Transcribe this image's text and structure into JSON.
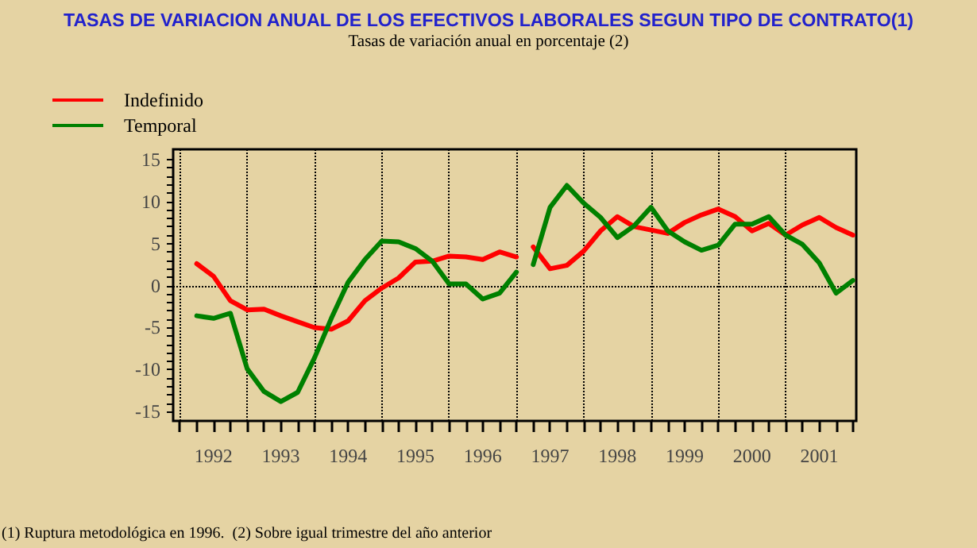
{
  "chart_data": {
    "type": "line",
    "title": "TASAS DE VARIACION ANUAL DE LOS EFECTIVOS LABORALES SEGUN TIPO DE CONTRATO(1)",
    "subtitle": "Tasas de variación anual en porcentaje (2)",
    "annotations": [
      "(1) Ruptura metodológica en 1996.  (2) Sobre igual trimestre del año anterior"
    ],
    "x": [
      1992.25,
      1992.5,
      1992.75,
      1993,
      1993.25,
      1993.5,
      1993.75,
      1994,
      1994.25,
      1994.5,
      1994.75,
      1995,
      1995.25,
      1995.5,
      1995.75,
      1996,
      1996.25,
      1996.5,
      1996.75,
      1997,
      1997.125,
      1997.25,
      1997.5,
      1997.75,
      1998,
      1998.25,
      1998.5,
      1998.75,
      1999,
      1999.25,
      1999.5,
      1999.75,
      2000,
      2000.25,
      2000.5,
      2000.75,
      2001,
      2001.25,
      2001.5,
      2001.75,
      2002
    ],
    "series": [
      {
        "name": "Indefinido",
        "color": "#ff0000",
        "values": [
          2.6,
          1.1,
          -1.8,
          -2.9,
          -2.8,
          -3.6,
          -4.3,
          -5.0,
          -5.2,
          -4.2,
          -1.8,
          -0.3,
          0.9,
          2.8,
          2.9,
          3.5,
          3.4,
          3.1,
          4.0,
          3.4,
          null,
          4.6,
          2.0,
          2.4,
          4.1,
          6.5,
          8.2,
          7.0,
          6.6,
          6.2,
          7.5,
          8.4,
          9.1,
          8.2,
          6.5,
          7.4,
          6.0,
          7.2,
          8.1,
          6.9,
          6.0
        ]
      },
      {
        "name": "Temporal",
        "color": "#008000",
        "values": [
          -3.6,
          -3.9,
          -3.3,
          -9.9,
          -12.6,
          -13.8,
          -12.7,
          -8.6,
          -3.9,
          0.4,
          3.1,
          5.3,
          5.2,
          4.4,
          2.9,
          0.2,
          0.2,
          -1.6,
          -0.9,
          1.6,
          null,
          2.5,
          9.3,
          11.9,
          9.8,
          8.1,
          5.7,
          7.1,
          9.3,
          6.5,
          5.2,
          4.2,
          4.8,
          7.3,
          7.3,
          8.2,
          6.0,
          4.9,
          2.7,
          -0.9,
          0.6
        ]
      }
    ],
    "xlim": [
      1991.9,
      2002.05
    ],
    "xticks": [
      {
        "value": 1992,
        "label": null
      },
      {
        "value": 1992.25,
        "label": null
      },
      {
        "value": 1992.5,
        "label": "1992"
      },
      {
        "value": 1992.75,
        "label": null
      },
      {
        "value": 1993,
        "label": null
      },
      {
        "value": 1993.25,
        "label": null
      },
      {
        "value": 1993.5,
        "label": "1993"
      },
      {
        "value": 1993.75,
        "label": null
      },
      {
        "value": 1994,
        "label": null
      },
      {
        "value": 1994.25,
        "label": null
      },
      {
        "value": 1994.5,
        "label": "1994"
      },
      {
        "value": 1994.75,
        "label": null
      },
      {
        "value": 1995,
        "label": null
      },
      {
        "value": 1995.25,
        "label": null
      },
      {
        "value": 1995.5,
        "label": "1995"
      },
      {
        "value": 1995.75,
        "label": null
      },
      {
        "value": 1996,
        "label": null
      },
      {
        "value": 1996.25,
        "label": null
      },
      {
        "value": 1996.5,
        "label": "1996"
      },
      {
        "value": 1996.75,
        "label": null
      },
      {
        "value": 1997,
        "label": null
      },
      {
        "value": 1997.25,
        "label": null
      },
      {
        "value": 1997.5,
        "label": "1997"
      },
      {
        "value": 1997.75,
        "label": null
      },
      {
        "value": 1998,
        "label": null
      },
      {
        "value": 1998.25,
        "label": null
      },
      {
        "value": 1998.5,
        "label": "1998"
      },
      {
        "value": 1998.75,
        "label": null
      },
      {
        "value": 1999,
        "label": null
      },
      {
        "value": 1999.25,
        "label": null
      },
      {
        "value": 1999.5,
        "label": "1999"
      },
      {
        "value": 1999.75,
        "label": null
      },
      {
        "value": 2000,
        "label": null
      },
      {
        "value": 2000.25,
        "label": null
      },
      {
        "value": 2000.5,
        "label": "2000"
      },
      {
        "value": 2000.75,
        "label": null
      },
      {
        "value": 2001,
        "label": null
      },
      {
        "value": 2001.25,
        "label": null
      },
      {
        "value": 2001.5,
        "label": "2001"
      },
      {
        "value": 2001.75,
        "label": null
      },
      {
        "value": 2002,
        "label": null
      }
    ],
    "ylim": [
      -16.1,
      16.2
    ],
    "yticks": [
      -15,
      {
        "value": -14,
        "label": null
      },
      {
        "value": -13,
        "label": null
      },
      {
        "value": -12,
        "label": null
      },
      {
        "value": -11,
        "label": null
      },
      -10,
      {
        "value": -9,
        "label": null
      },
      {
        "value": -8,
        "label": null
      },
      {
        "value": -7,
        "label": null
      },
      {
        "value": -6,
        "label": null
      },
      -5,
      {
        "value": -4,
        "label": null
      },
      {
        "value": -3,
        "label": null
      },
      {
        "value": -2,
        "label": null
      },
      {
        "value": -1,
        "label": null
      },
      0,
      {
        "value": 1,
        "label": null
      },
      {
        "value": 2,
        "label": null
      },
      {
        "value": 3,
        "label": null
      },
      {
        "value": 4,
        "label": null
      },
      5,
      {
        "value": 6,
        "label": null
      },
      {
        "value": 7,
        "label": null
      },
      {
        "value": 8,
        "label": null
      },
      {
        "value": 9,
        "label": null
      },
      10,
      {
        "value": 11,
        "label": null
      },
      {
        "value": 12,
        "label": null
      },
      {
        "value": 13,
        "label": null
      },
      {
        "value": 14,
        "label": null
      },
      15
    ],
    "ref_lines": [
      {
        "axis": "y",
        "value": 0,
        "line_style": "dotted"
      },
      {
        "axis": "x",
        "value": 1992,
        "line_style": "dotted"
      },
      {
        "axis": "x",
        "value": 1993,
        "line_style": "dotted"
      },
      {
        "axis": "x",
        "value": 1994,
        "line_style": "dotted"
      },
      {
        "axis": "x",
        "value": 1995,
        "line_style": "dotted"
      },
      {
        "axis": "x",
        "value": 1996,
        "line_style": "dotted"
      },
      {
        "axis": "x",
        "value": 1997,
        "line_style": "dotted"
      },
      {
        "axis": "x",
        "value": 1998,
        "line_style": "dotted"
      },
      {
        "axis": "x",
        "value": 1999,
        "line_style": "dotted"
      },
      {
        "axis": "x",
        "value": 2000,
        "line_style": "dotted"
      },
      {
        "axis": "x",
        "value": 2001,
        "line_style": "dotted"
      }
    ],
    "grid": false,
    "legend": "top left",
    "marker": "none",
    "line_style": "solid"
  }
}
